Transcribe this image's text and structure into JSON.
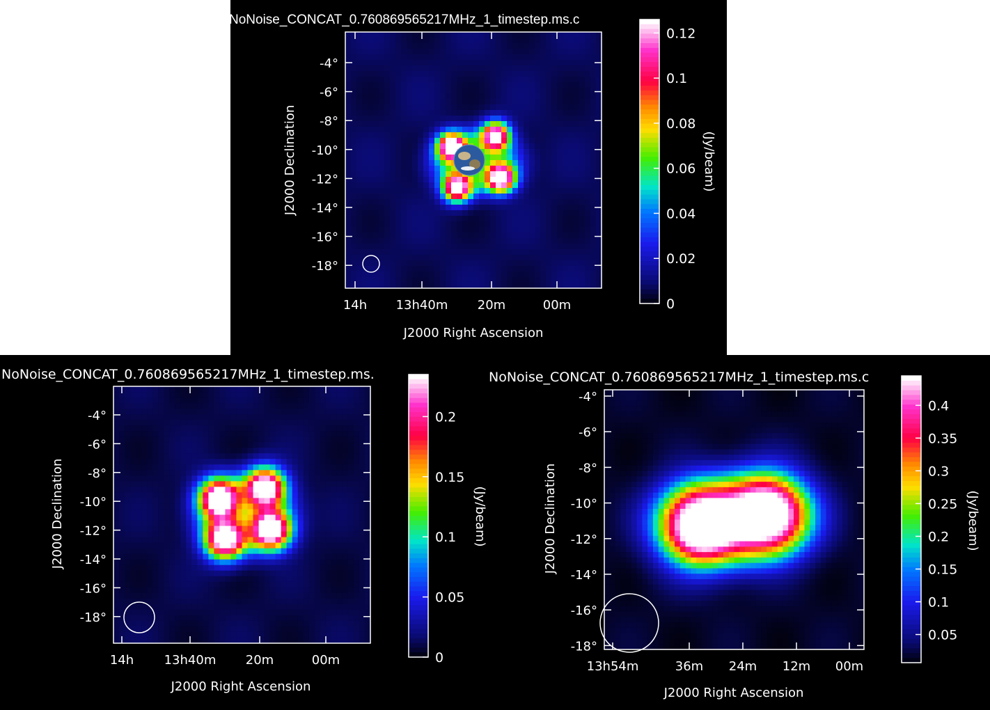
{
  "colors": {
    "background": "#000000",
    "page": "#ffffff",
    "frame": "#ffffff",
    "text": "#ffffff",
    "colormap": [
      "#ffffff",
      "#ff33cc",
      "#ff0044",
      "#ff8800",
      "#ffdd00",
      "#44ee00",
      "#00e6c8",
      "#0077ff",
      "#1a1aee",
      "#0a0a70",
      "#000000"
    ]
  },
  "chart_data": [
    {
      "type": "heatmap",
      "title": "NoNoise_CONCAT_0.760869565217MHz_1_timestep.ms.c",
      "xlabel": "J2000 Right Ascension",
      "ylabel": "J2000 Declination",
      "colorbar_label": "(Jy/beam)",
      "x_ticks": [
        "14h",
        "13h40m",
        "20m",
        "00m"
      ],
      "y_ticks": [
        "-4°",
        "-6°",
        "-8°",
        "-10°",
        "-12°",
        "-14°",
        "-16°",
        "-18°"
      ],
      "colorbar_ticks": [
        "0",
        "0.02",
        "0.04",
        "0.06",
        "0.08",
        "0.1",
        "0.12"
      ],
      "colorbar_range": [
        0,
        0.126
      ],
      "has_earth_image": true,
      "sources": [
        {
          "ra_offset": -0.8,
          "dec": -9.8,
          "peak": 0.115
        },
        {
          "ra_offset": 0.8,
          "dec": -9.0,
          "peak": 0.115
        },
        {
          "ra_offset": -0.6,
          "dec": -12.7,
          "peak": 0.115
        },
        {
          "ra_offset": 1.0,
          "dec": -12.0,
          "peak": 0.115
        }
      ]
    },
    {
      "type": "heatmap",
      "title": "NoNoise_CONCAT_0.760869565217MHz_1_timestep.ms.",
      "xlabel": "J2000 Right Ascension",
      "ylabel": "J2000 Declination",
      "colorbar_label": "(Jy/beam)",
      "x_ticks": [
        "14h",
        "13h40m",
        "20m",
        "00m"
      ],
      "y_ticks": [
        "-4°",
        "-6°",
        "-8°",
        "-10°",
        "-12°",
        "-14°",
        "-16°",
        "-18°"
      ],
      "colorbar_ticks": [
        "0",
        "0.05",
        "0.1",
        "0.15",
        "0.2"
      ],
      "colorbar_range": [
        0,
        0.235
      ],
      "sources": [
        {
          "ra_offset": -0.8,
          "dec": -9.8,
          "peak": 0.225
        },
        {
          "ra_offset": 0.8,
          "dec": -9.0,
          "peak": 0.225
        },
        {
          "ra_offset": -0.6,
          "dec": -12.7,
          "peak": 0.225
        },
        {
          "ra_offset": 1.0,
          "dec": -12.0,
          "peak": 0.225
        }
      ]
    },
    {
      "type": "heatmap",
      "title": "NoNoise_CONCAT_0.760869565217MHz_1_timestep.ms.c",
      "xlabel": "J2000 Right Ascension",
      "ylabel": "J2000 Declination",
      "colorbar_label": "(Jy/beam)",
      "x_ticks": [
        "13h54m",
        "36m",
        "24m",
        "12m",
        "00m"
      ],
      "y_ticks": [
        "-4°",
        "-6°",
        "-8°",
        "-10°",
        "-12°",
        "-14°",
        "-16°",
        "-18°"
      ],
      "colorbar_ticks": [
        "0.05",
        "0.1",
        "0.15",
        "0.2",
        "0.25",
        "0.3",
        "0.35",
        "0.4"
      ],
      "colorbar_range": [
        0.007,
        0.445
      ],
      "sources": [
        {
          "ra_offset": -0.7,
          "dec": -11.3,
          "peak": 0.44
        },
        {
          "ra_offset": 0.7,
          "dec": -10.6,
          "peak": 0.43
        }
      ]
    }
  ]
}
